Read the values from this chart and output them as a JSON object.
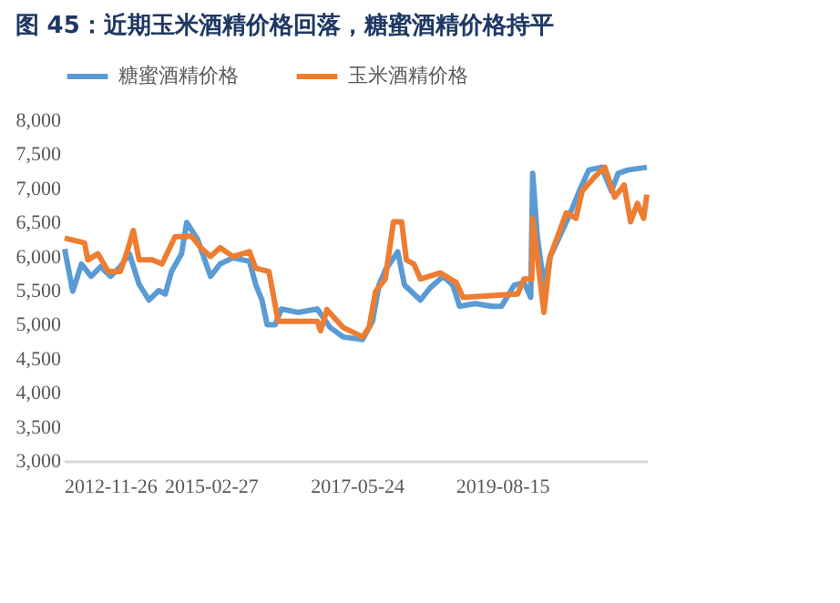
{
  "chart_data": {
    "type": "line",
    "title": "图 45：近期玉米酒精价格回落，糖蜜酒精价格持平",
    "xlim": [
      "2012-11-26",
      "2021-11-02"
    ],
    "xticks": [
      "2012-11-26",
      "2015-02-27",
      "2017-05-24",
      "2019-08-15"
    ],
    "ylim": [
      3000,
      8000
    ],
    "yticks": [
      {
        "value": 3000,
        "label": "3,000"
      },
      {
        "value": 3500,
        "label": "3,500"
      },
      {
        "value": 4000,
        "label": "4,000"
      },
      {
        "value": 4500,
        "label": "4,500"
      },
      {
        "value": 5000,
        "label": "5,000"
      },
      {
        "value": 5500,
        "label": "5,500"
      },
      {
        "value": 6000,
        "label": "6,000"
      },
      {
        "value": 6500,
        "label": "6,500"
      },
      {
        "value": 7000,
        "label": "7,000"
      },
      {
        "value": 7500,
        "label": "7,500"
      },
      {
        "value": 8000,
        "label": "8,000"
      }
    ],
    "grid": false,
    "legend": "top",
    "marker": "none",
    "line_style": "solid",
    "series": [
      {
        "name": "糖蜜酒精价格",
        "color": "#5b9bd5",
        "x": [
          "2012-12-01",
          "2013-01-15",
          "2013-03-05",
          "2013-04-28",
          "2013-06-20",
          "2013-08-15",
          "2013-10-08",
          "2013-11-28",
          "2014-01-22",
          "2014-03-18",
          "2014-05-12",
          "2014-06-17",
          "2014-07-22",
          "2014-09-16",
          "2014-10-15",
          "2014-12-15",
          "2015-02-25",
          "2015-04-20",
          "2015-07-01",
          "2015-10-01",
          "2015-11-05",
          "2015-12-10",
          "2016-01-08",
          "2016-02-22",
          "2016-03-28",
          "2016-06-28",
          "2016-10-15",
          "2016-12-25",
          "2017-03-08",
          "2017-06-25",
          "2017-08-20",
          "2017-09-25",
          "2017-10-30",
          "2018-01-08",
          "2018-02-15",
          "2018-05-15",
          "2018-07-08",
          "2018-09-20",
          "2018-11-12",
          "2018-12-20",
          "2019-03-18",
          "2019-06-18",
          "2019-08-12",
          "2019-10-22",
          "2019-12-15",
          "2020-01-22",
          "2020-02-02",
          "2020-02-28",
          "2020-04-05",
          "2020-05-10",
          "2020-07-01",
          "2020-08-25",
          "2020-10-20",
          "2020-12-12",
          "2021-02-22",
          "2021-04-18",
          "2021-05-25",
          "2021-07-18",
          "2021-11-02"
        ],
        "values": [
          6110,
          5490,
          5890,
          5710,
          5850,
          5710,
          5850,
          6040,
          5590,
          5360,
          5500,
          5450,
          5780,
          6040,
          6500,
          6250,
          5710,
          5890,
          5980,
          5930,
          5590,
          5360,
          5000,
          5000,
          5230,
          5180,
          5230,
          4960,
          4820,
          4780,
          5050,
          5580,
          5800,
          6070,
          5580,
          5360,
          5540,
          5710,
          5580,
          5270,
          5310,
          5270,
          5270,
          5580,
          5620,
          5400,
          7220,
          6290,
          5580,
          6000,
          6290,
          6600,
          6960,
          7270,
          7310,
          6960,
          7220,
          7270,
          7310
        ]
      },
      {
        "name": "玉米酒精价格",
        "color": "#ed7d31",
        "x": [
          "2012-12-01",
          "2013-03-22",
          "2013-04-10",
          "2013-06-05",
          "2013-08-01",
          "2013-10-08",
          "2013-11-12",
          "2013-12-20",
          "2014-01-22",
          "2014-04-05",
          "2014-05-30",
          "2014-08-10",
          "2014-11-10",
          "2015-01-02",
          "2015-02-25",
          "2015-04-20",
          "2015-07-01",
          "2015-10-01",
          "2015-11-05",
          "2016-01-18",
          "2016-03-10",
          "2016-10-15",
          "2016-11-02",
          "2016-12-08",
          "2017-03-08",
          "2017-06-25",
          "2017-08-01",
          "2017-09-06",
          "2017-10-30",
          "2017-12-15",
          "2018-01-30",
          "2018-02-25",
          "2018-04-08",
          "2018-05-15",
          "2018-09-02",
          "2018-12-01",
          "2019-01-08",
          "2019-11-10",
          "2019-12-15",
          "2020-01-28",
          "2020-02-02",
          "2020-04-05",
          "2020-05-10",
          "2020-08-08",
          "2020-10-01",
          "2020-11-05",
          "2021-01-18",
          "2021-03-12",
          "2021-05-06",
          "2021-06-28",
          "2021-08-03",
          "2021-09-10",
          "2021-10-15",
          "2021-11-02"
        ],
        "values": [
          6270,
          6200,
          5950,
          6040,
          5780,
          5780,
          6040,
          6380,
          5950,
          5950,
          5890,
          6290,
          6300,
          6130,
          6000,
          6130,
          6000,
          6070,
          5830,
          5780,
          5050,
          5050,
          4910,
          5220,
          4960,
          4820,
          4960,
          5490,
          5670,
          6510,
          6510,
          5950,
          5890,
          5670,
          5760,
          5620,
          5400,
          5450,
          5670,
          5670,
          6560,
          5180,
          6000,
          6640,
          6560,
          6960,
          7180,
          7310,
          6870,
          7050,
          6510,
          6780,
          6560,
          6910
        ]
      }
    ]
  }
}
